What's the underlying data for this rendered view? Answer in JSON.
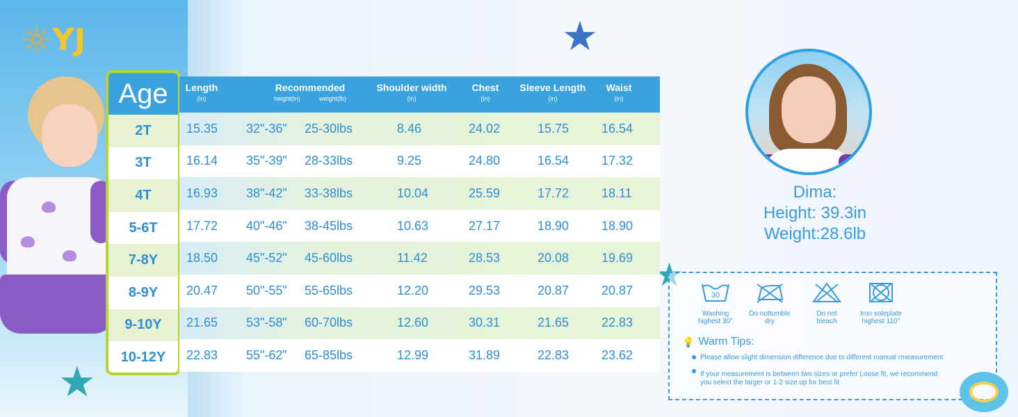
{
  "brand": {
    "logo_text": "YJ"
  },
  "table": {
    "age_header": "Age",
    "columns": [
      {
        "label": "Length",
        "unit": "(in)"
      },
      {
        "label": "Recommended",
        "sub1": "height(in)",
        "sub2": "weight(lb)"
      },
      {
        "label": "Shoulder width",
        "unit": "(in)"
      },
      {
        "label": "Chest",
        "unit": "(in)"
      },
      {
        "label": "Sleeve Length",
        "unit": "(in)"
      },
      {
        "label": "Waist",
        "unit": "(in)"
      }
    ],
    "rows": [
      {
        "age": "2T",
        "length": "15.35",
        "height": "32\"-36\"",
        "weight": "25-30lbs",
        "shoulder": "8.46",
        "chest": "24.02",
        "sleeve": "15.75",
        "waist": "16.54"
      },
      {
        "age": "3T",
        "length": "16.14",
        "height": "35\"-39\"",
        "weight": "28-33lbs",
        "shoulder": "9.25",
        "chest": "24.80",
        "sleeve": "16.54",
        "waist": "17.32"
      },
      {
        "age": "4T",
        "length": "16.93",
        "height": "38\"-42\"",
        "weight": "33-38lbs",
        "shoulder": "10.04",
        "chest": "25.59",
        "sleeve": "17.72",
        "waist": "18.11"
      },
      {
        "age": "5-6T",
        "length": "17.72",
        "height": "40\"-46\"",
        "weight": "38-45lbs",
        "shoulder": "10.63",
        "chest": "27.17",
        "sleeve": "18.90",
        "waist": "18.90"
      },
      {
        "age": "7-8Y",
        "length": "18.50",
        "height": "45\"-52\"",
        "weight": "45-60lbs",
        "shoulder": "11.42",
        "chest": "28.53",
        "sleeve": "20.08",
        "waist": "19.69"
      },
      {
        "age": "8-9Y",
        "length": "20.47",
        "height": "50\"-55\"",
        "weight": "55-65lbs",
        "shoulder": "12.20",
        "chest": "29.53",
        "sleeve": "20.87",
        "waist": "20.87"
      },
      {
        "age": "9-10Y",
        "length": "21.65",
        "height": "53\"-58\"",
        "weight": "60-70lbs",
        "shoulder": "12.60",
        "chest": "30.31",
        "sleeve": "21.65",
        "waist": "22.83"
      },
      {
        "age": "10-12Y",
        "length": "22.83",
        "height": "55\"-62\"",
        "weight": "65-85lbs",
        "shoulder": "12.99",
        "chest": "31.89",
        "sleeve": "22.83",
        "waist": "23.62"
      }
    ]
  },
  "model": {
    "name": "Dima:",
    "height": "Height: 39.3in",
    "weight": "Weight:28.6lb"
  },
  "care": {
    "items": [
      {
        "icon": "washing-30-icon",
        "line1": "Washing",
        "line2": "highest 30°",
        "badge": "30"
      },
      {
        "icon": "no-tumble-dry-icon",
        "line1": "Do nottumble",
        "line2": "dry"
      },
      {
        "icon": "no-bleach-icon",
        "line1": "Do not",
        "line2": "bleach"
      },
      {
        "icon": "iron-110-icon",
        "line1": "Iron soleplate",
        "line2": "highest 110°"
      }
    ],
    "tips_title": "Warm Tips:",
    "tips": [
      "Please allow slight dimension difference due to different manual rmeasurement",
      "If your measurement is between two sizes or prefer Loose fit, we recommend",
      "you select the larger or 1-2 size up for best fit"
    ]
  },
  "colors": {
    "accent": "#3ba2e0",
    "age_border": "#b5d334",
    "text": "#2d8fd8"
  }
}
